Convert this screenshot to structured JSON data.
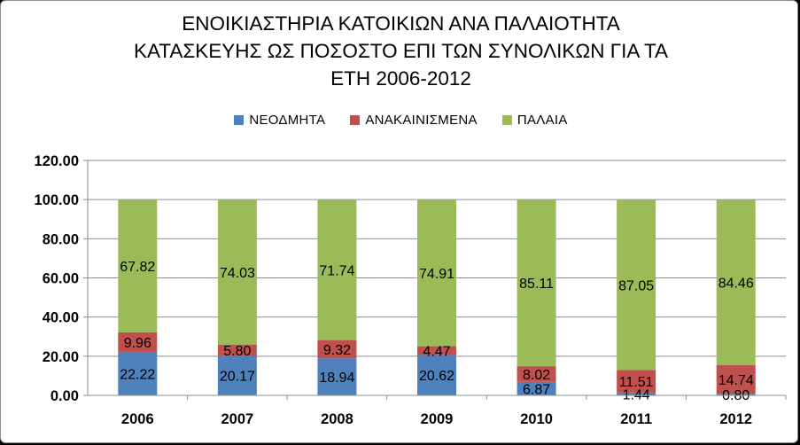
{
  "chart_data": {
    "type": "bar",
    "stacked": true,
    "title_lines": [
      "ΕΝΟΙΚΙΑΣΤΗΡΙΑ ΚΑΤΟΙΚΙΩΝ ΑΝΑ ΠΑΛΑΙΟΤΗΤΑ",
      "ΚΑΤΑΣΚΕΥΗΣ ΩΣ ΠΟΣΟΣΤΟ ΕΠΙ ΤΩΝ ΣΥΝΟΛΙΚΩΝ ΓΙΑ ΤΑ",
      "ΕΤΗ 2006-2012"
    ],
    "xlabel": "",
    "ylabel": "",
    "ylim": [
      0,
      120
    ],
    "yticks": [
      "0.00",
      "20.00",
      "40.00",
      "60.00",
      "80.00",
      "100.00",
      "120.00"
    ],
    "grid": true,
    "legend_position": "top",
    "categories": [
      "2006",
      "2007",
      "2008",
      "2009",
      "2010",
      "2011",
      "2012"
    ],
    "series": [
      {
        "name": "ΝΕΟΔΜΗΤΑ",
        "color": "#4f81bd",
        "values": [
          22.22,
          20.17,
          18.94,
          20.62,
          6.87,
          1.44,
          0.8
        ],
        "labels": [
          "22.22",
          "20.17",
          "18.94",
          "20.62",
          "6.87",
          "1.44",
          "0.80"
        ]
      },
      {
        "name": "ΑΝΑΚΑΙΝΙΣΜΕΝΑ",
        "color": "#c0504d",
        "values": [
          9.96,
          5.8,
          9.32,
          4.47,
          8.02,
          11.51,
          14.74
        ],
        "labels": [
          "9.96",
          "5.80",
          "9.32",
          "4.47",
          "8.02",
          "11.51",
          "14.74"
        ]
      },
      {
        "name": "ΠΑΛΑΙΑ",
        "color": "#9bbb59",
        "values": [
          67.82,
          74.03,
          71.74,
          74.91,
          85.11,
          87.05,
          84.46
        ],
        "labels": [
          "67.82",
          "74.03",
          "71.74",
          "74.91",
          "85.11",
          "87.05",
          "84.46"
        ]
      }
    ]
  }
}
